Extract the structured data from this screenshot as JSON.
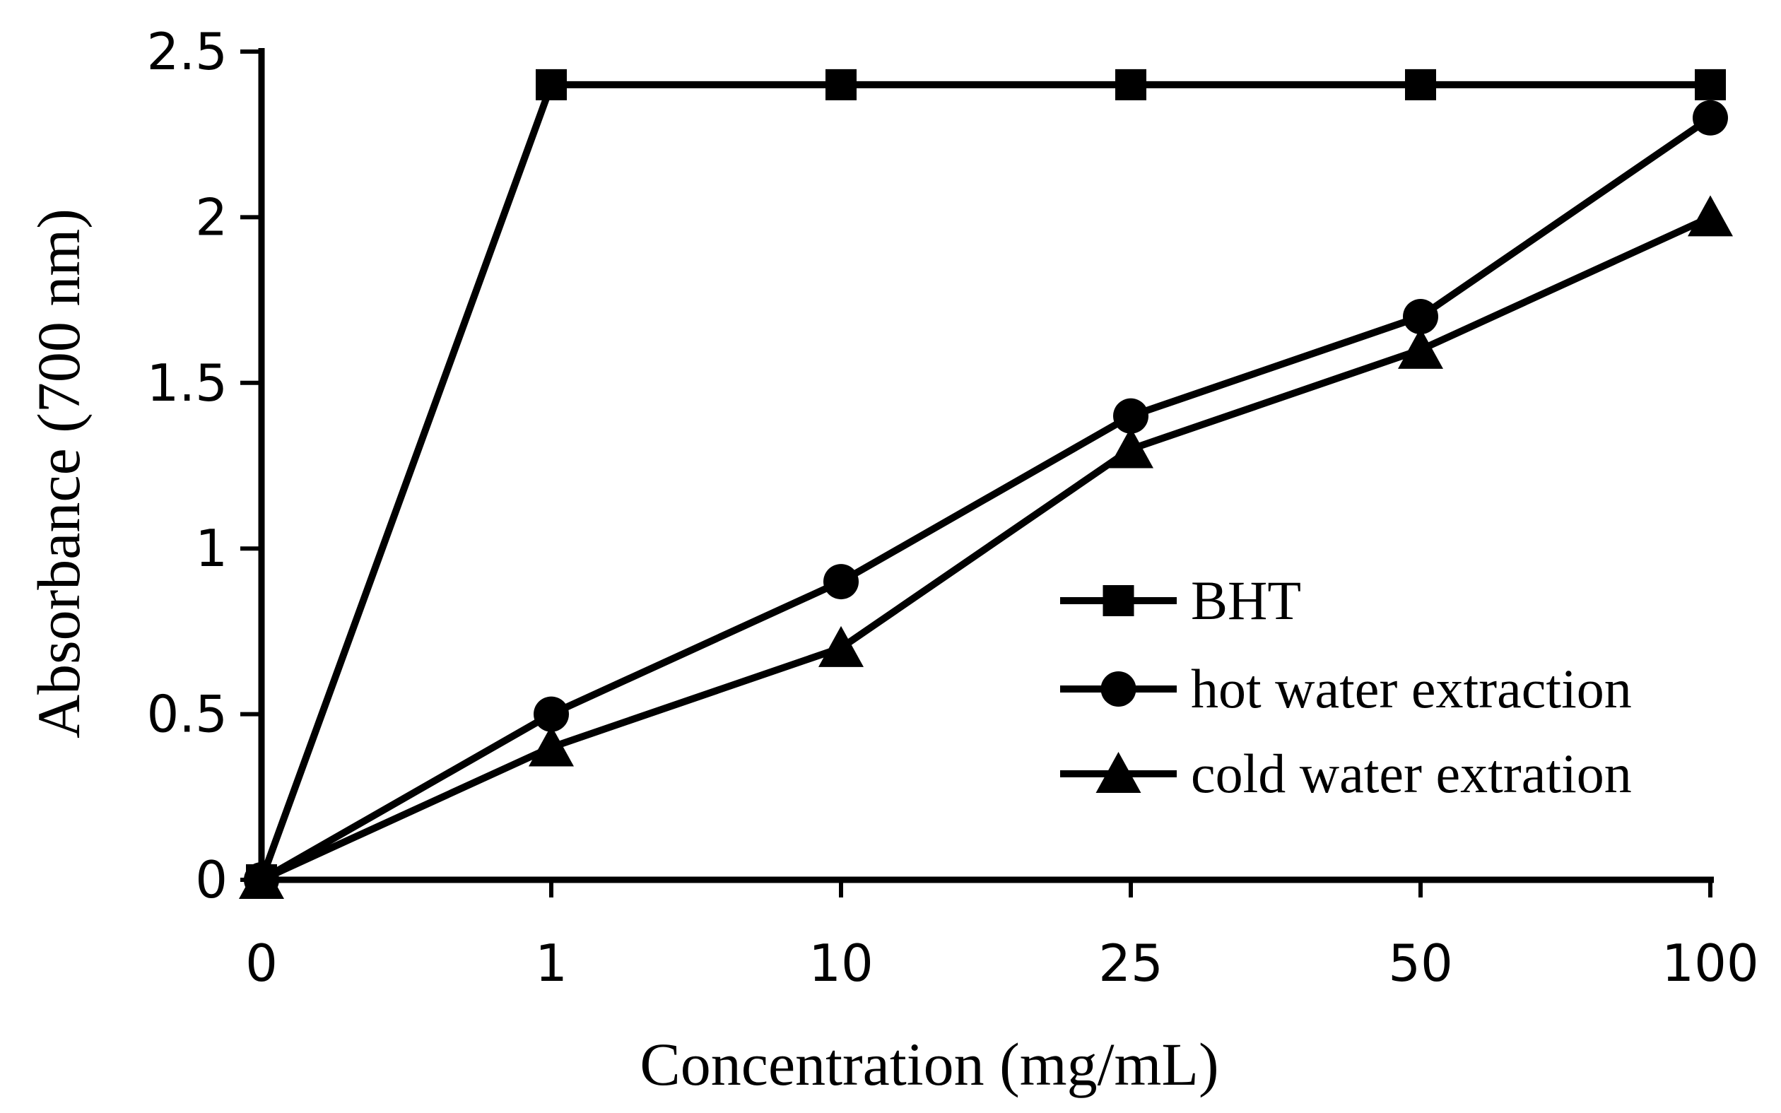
{
  "chart_data": {
    "type": "line",
    "title": "",
    "xlabel": "Concentration (mg/mL)",
    "ylabel": "Absorbance (700 nm)",
    "categories": [
      "0",
      "1",
      "10",
      "25",
      "50",
      "100"
    ],
    "ylim": [
      0,
      2.5
    ],
    "yticks": [
      "0",
      "0.5",
      "1",
      "1.5",
      "2",
      "2.5"
    ],
    "grid": false,
    "legend_position": "lower-right",
    "line_color": "#000000",
    "series": [
      {
        "name": "BHT",
        "marker": "square",
        "values": [
          0,
          2.4,
          2.4,
          2.4,
          2.4,
          2.4
        ]
      },
      {
        "name": "hot water extraction",
        "marker": "circle",
        "values": [
          0,
          0.5,
          0.9,
          1.4,
          1.7,
          2.3
        ]
      },
      {
        "name": "cold water extration",
        "marker": "triangle",
        "values": [
          0,
          0.4,
          0.7,
          1.3,
          1.6,
          2.0
        ]
      }
    ]
  }
}
